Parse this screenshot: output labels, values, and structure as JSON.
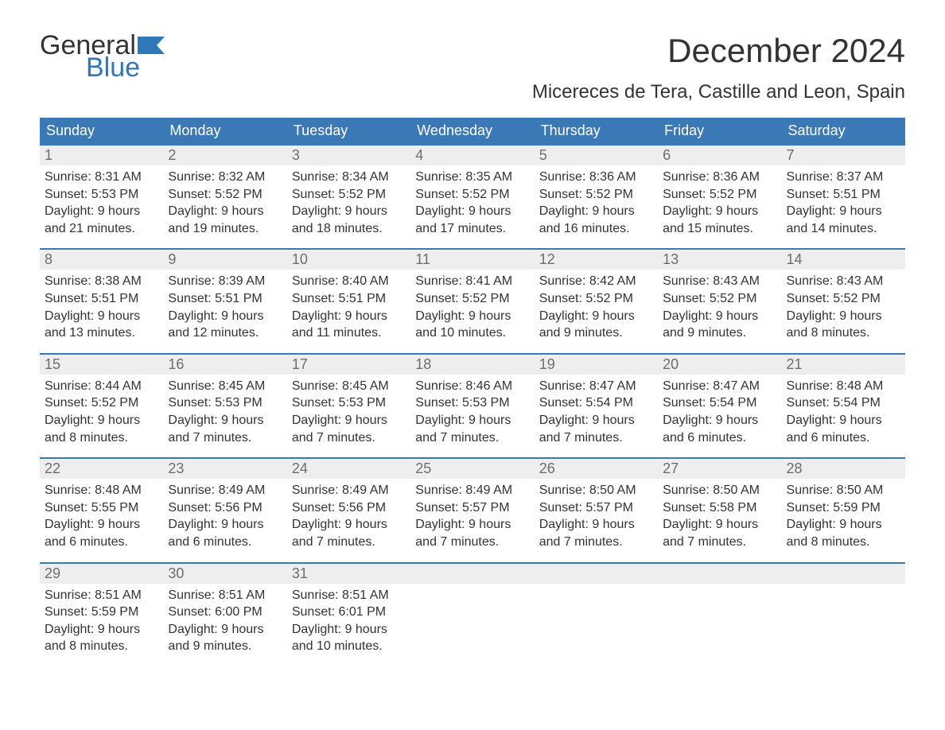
{
  "brand": {
    "word1": "General",
    "word2": "Blue",
    "flag_color": "#2e77b8"
  },
  "title": "December 2024",
  "location": "Micereces de Tera, Castille and Leon, Spain",
  "colors": {
    "header_bg": "#3a78b6",
    "header_text": "#ffffff",
    "daynum_bg": "#eeeeee",
    "daynum_text": "#6d6d6d",
    "body_text": "#333333",
    "border": "#3a78b6",
    "page_bg": "#ffffff"
  },
  "typography": {
    "title_fontsize": 42,
    "location_fontsize": 24,
    "header_fontsize": 18,
    "cell_fontsize": 16
  },
  "day_names": [
    "Sunday",
    "Monday",
    "Tuesday",
    "Wednesday",
    "Thursday",
    "Friday",
    "Saturday"
  ],
  "weeks": [
    [
      {
        "n": "1",
        "sunrise": "Sunrise: 8:31 AM",
        "sunset": "Sunset: 5:53 PM",
        "d1": "Daylight: 9 hours",
        "d2": "and 21 minutes."
      },
      {
        "n": "2",
        "sunrise": "Sunrise: 8:32 AM",
        "sunset": "Sunset: 5:52 PM",
        "d1": "Daylight: 9 hours",
        "d2": "and 19 minutes."
      },
      {
        "n": "3",
        "sunrise": "Sunrise: 8:34 AM",
        "sunset": "Sunset: 5:52 PM",
        "d1": "Daylight: 9 hours",
        "d2": "and 18 minutes."
      },
      {
        "n": "4",
        "sunrise": "Sunrise: 8:35 AM",
        "sunset": "Sunset: 5:52 PM",
        "d1": "Daylight: 9 hours",
        "d2": "and 17 minutes."
      },
      {
        "n": "5",
        "sunrise": "Sunrise: 8:36 AM",
        "sunset": "Sunset: 5:52 PM",
        "d1": "Daylight: 9 hours",
        "d2": "and 16 minutes."
      },
      {
        "n": "6",
        "sunrise": "Sunrise: 8:36 AM",
        "sunset": "Sunset: 5:52 PM",
        "d1": "Daylight: 9 hours",
        "d2": "and 15 minutes."
      },
      {
        "n": "7",
        "sunrise": "Sunrise: 8:37 AM",
        "sunset": "Sunset: 5:51 PM",
        "d1": "Daylight: 9 hours",
        "d2": "and 14 minutes."
      }
    ],
    [
      {
        "n": "8",
        "sunrise": "Sunrise: 8:38 AM",
        "sunset": "Sunset: 5:51 PM",
        "d1": "Daylight: 9 hours",
        "d2": "and 13 minutes."
      },
      {
        "n": "9",
        "sunrise": "Sunrise: 8:39 AM",
        "sunset": "Sunset: 5:51 PM",
        "d1": "Daylight: 9 hours",
        "d2": "and 12 minutes."
      },
      {
        "n": "10",
        "sunrise": "Sunrise: 8:40 AM",
        "sunset": "Sunset: 5:51 PM",
        "d1": "Daylight: 9 hours",
        "d2": "and 11 minutes."
      },
      {
        "n": "11",
        "sunrise": "Sunrise: 8:41 AM",
        "sunset": "Sunset: 5:52 PM",
        "d1": "Daylight: 9 hours",
        "d2": "and 10 minutes."
      },
      {
        "n": "12",
        "sunrise": "Sunrise: 8:42 AM",
        "sunset": "Sunset: 5:52 PM",
        "d1": "Daylight: 9 hours",
        "d2": "and 9 minutes."
      },
      {
        "n": "13",
        "sunrise": "Sunrise: 8:43 AM",
        "sunset": "Sunset: 5:52 PM",
        "d1": "Daylight: 9 hours",
        "d2": "and 9 minutes."
      },
      {
        "n": "14",
        "sunrise": "Sunrise: 8:43 AM",
        "sunset": "Sunset: 5:52 PM",
        "d1": "Daylight: 9 hours",
        "d2": "and 8 minutes."
      }
    ],
    [
      {
        "n": "15",
        "sunrise": "Sunrise: 8:44 AM",
        "sunset": "Sunset: 5:52 PM",
        "d1": "Daylight: 9 hours",
        "d2": "and 8 minutes."
      },
      {
        "n": "16",
        "sunrise": "Sunrise: 8:45 AM",
        "sunset": "Sunset: 5:53 PM",
        "d1": "Daylight: 9 hours",
        "d2": "and 7 minutes."
      },
      {
        "n": "17",
        "sunrise": "Sunrise: 8:45 AM",
        "sunset": "Sunset: 5:53 PM",
        "d1": "Daylight: 9 hours",
        "d2": "and 7 minutes."
      },
      {
        "n": "18",
        "sunrise": "Sunrise: 8:46 AM",
        "sunset": "Sunset: 5:53 PM",
        "d1": "Daylight: 9 hours",
        "d2": "and 7 minutes."
      },
      {
        "n": "19",
        "sunrise": "Sunrise: 8:47 AM",
        "sunset": "Sunset: 5:54 PM",
        "d1": "Daylight: 9 hours",
        "d2": "and 7 minutes."
      },
      {
        "n": "20",
        "sunrise": "Sunrise: 8:47 AM",
        "sunset": "Sunset: 5:54 PM",
        "d1": "Daylight: 9 hours",
        "d2": "and 6 minutes."
      },
      {
        "n": "21",
        "sunrise": "Sunrise: 8:48 AM",
        "sunset": "Sunset: 5:54 PM",
        "d1": "Daylight: 9 hours",
        "d2": "and 6 minutes."
      }
    ],
    [
      {
        "n": "22",
        "sunrise": "Sunrise: 8:48 AM",
        "sunset": "Sunset: 5:55 PM",
        "d1": "Daylight: 9 hours",
        "d2": "and 6 minutes."
      },
      {
        "n": "23",
        "sunrise": "Sunrise: 8:49 AM",
        "sunset": "Sunset: 5:56 PM",
        "d1": "Daylight: 9 hours",
        "d2": "and 6 minutes."
      },
      {
        "n": "24",
        "sunrise": "Sunrise: 8:49 AM",
        "sunset": "Sunset: 5:56 PM",
        "d1": "Daylight: 9 hours",
        "d2": "and 7 minutes."
      },
      {
        "n": "25",
        "sunrise": "Sunrise: 8:49 AM",
        "sunset": "Sunset: 5:57 PM",
        "d1": "Daylight: 9 hours",
        "d2": "and 7 minutes."
      },
      {
        "n": "26",
        "sunrise": "Sunrise: 8:50 AM",
        "sunset": "Sunset: 5:57 PM",
        "d1": "Daylight: 9 hours",
        "d2": "and 7 minutes."
      },
      {
        "n": "27",
        "sunrise": "Sunrise: 8:50 AM",
        "sunset": "Sunset: 5:58 PM",
        "d1": "Daylight: 9 hours",
        "d2": "and 7 minutes."
      },
      {
        "n": "28",
        "sunrise": "Sunrise: 8:50 AM",
        "sunset": "Sunset: 5:59 PM",
        "d1": "Daylight: 9 hours",
        "d2": "and 8 minutes."
      }
    ],
    [
      {
        "n": "29",
        "sunrise": "Sunrise: 8:51 AM",
        "sunset": "Sunset: 5:59 PM",
        "d1": "Daylight: 9 hours",
        "d2": "and 8 minutes."
      },
      {
        "n": "30",
        "sunrise": "Sunrise: 8:51 AM",
        "sunset": "Sunset: 6:00 PM",
        "d1": "Daylight: 9 hours",
        "d2": "and 9 minutes."
      },
      {
        "n": "31",
        "sunrise": "Sunrise: 8:51 AM",
        "sunset": "Sunset: 6:01 PM",
        "d1": "Daylight: 9 hours",
        "d2": "and 10 minutes."
      },
      null,
      null,
      null,
      null
    ]
  ]
}
